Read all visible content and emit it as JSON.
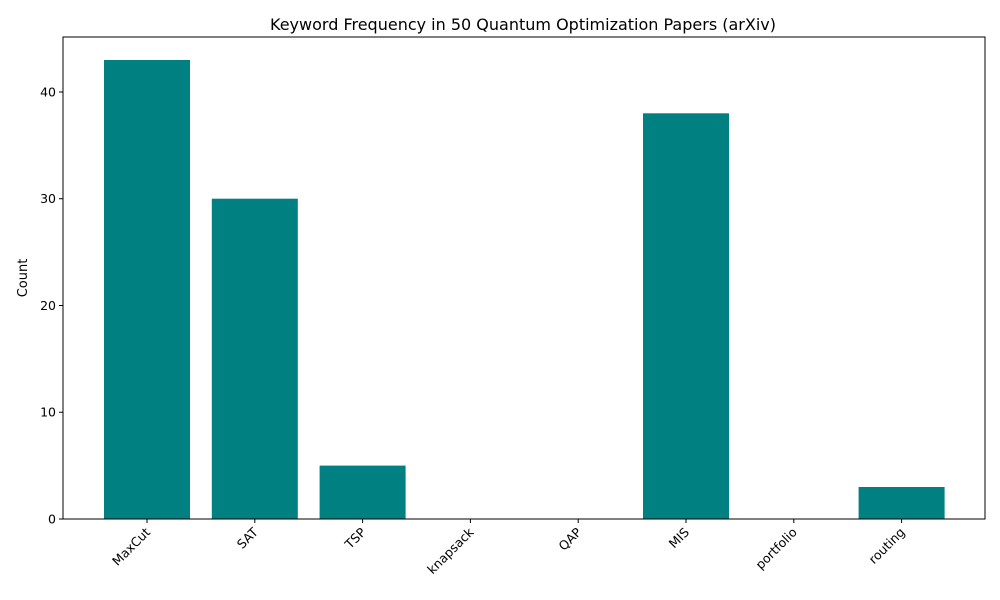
{
  "chart_data": {
    "type": "bar",
    "title": "Keyword Frequency in 50 Quantum Optimization Papers (arXiv)",
    "xlabel": "",
    "ylabel": "Count",
    "categories": [
      "MaxCut",
      "SAT",
      "TSP",
      "knapsack",
      "QAP",
      "MIS",
      "portfolio",
      "routing"
    ],
    "values": [
      43,
      30,
      5,
      0,
      0,
      38,
      0,
      3
    ],
    "ylim": [
      0,
      45.15
    ],
    "yticks": [
      0,
      10,
      20,
      30,
      40
    ],
    "bar_color": "#008080",
    "grid": false,
    "legend": "none"
  }
}
